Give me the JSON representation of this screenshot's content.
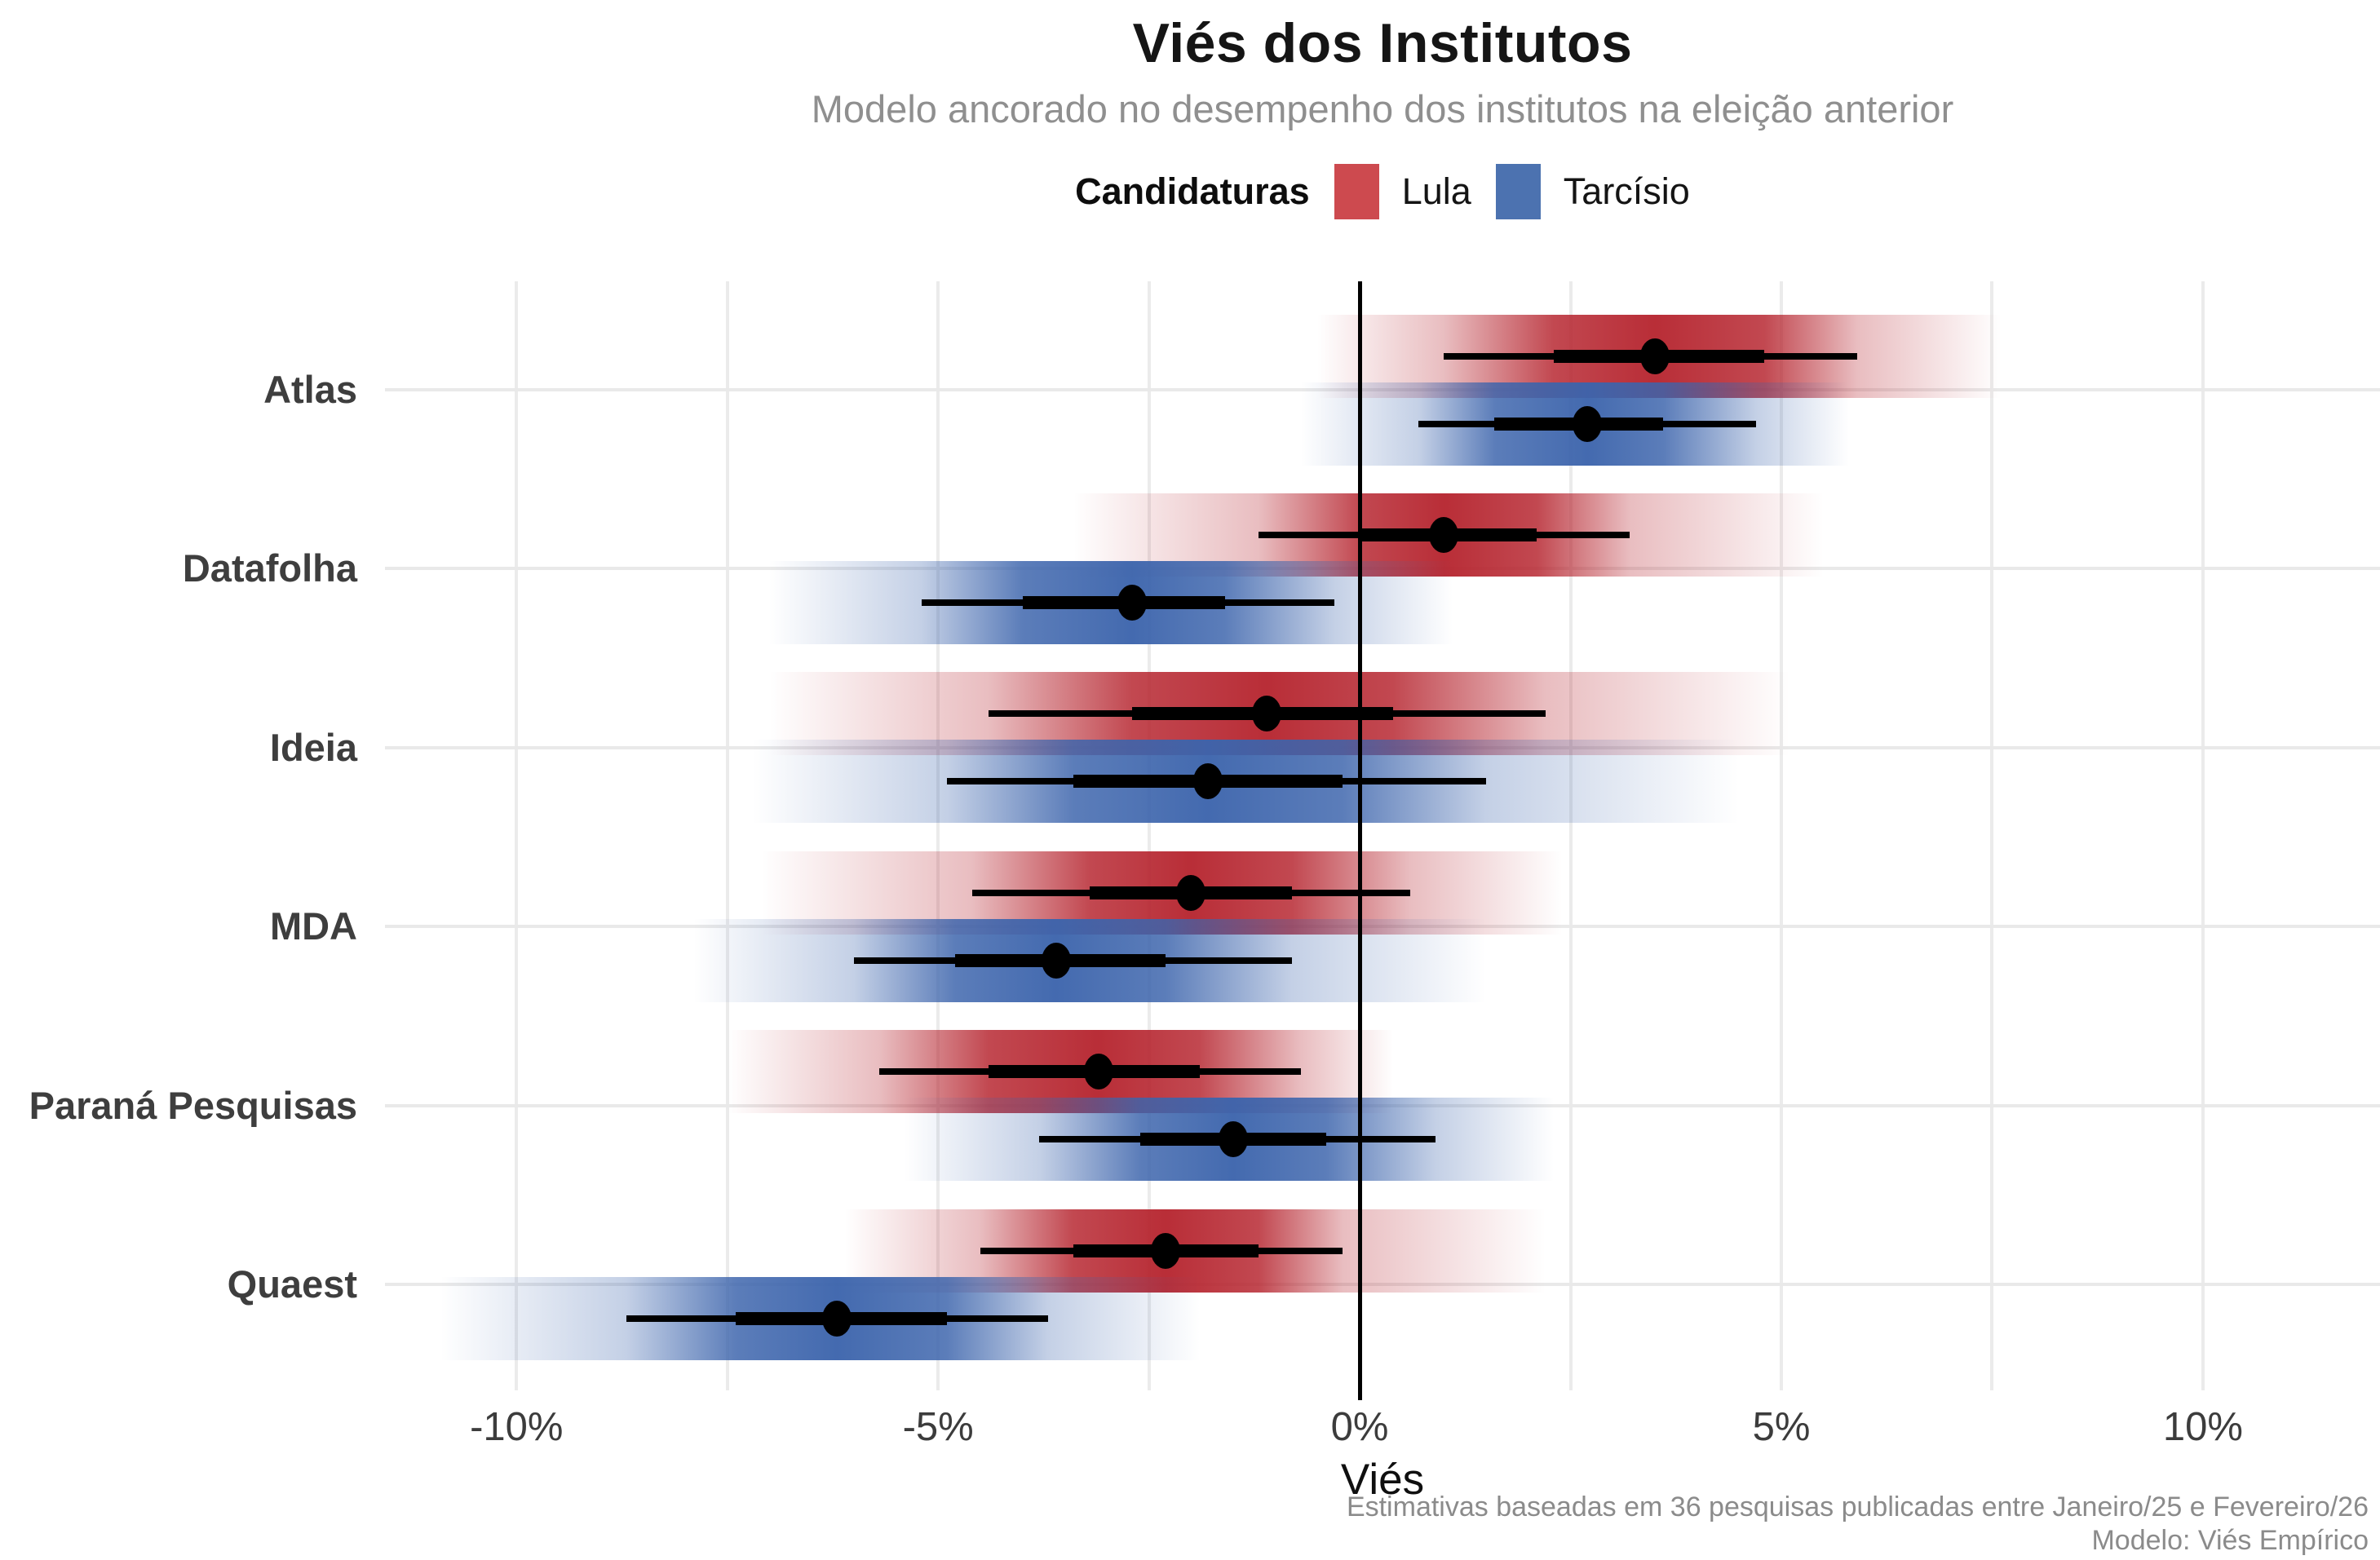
{
  "header": {
    "title": "Viés dos Institutos",
    "subtitle": "Modelo ancorado no desempenho dos institutos na eleição anterior"
  },
  "legend": {
    "label": "Candidaturas",
    "items": [
      {
        "name": "Lula",
        "color": "#CD4A4F"
      },
      {
        "name": "Tarcísio",
        "color": "#4C72B0"
      }
    ]
  },
  "axis": {
    "title": "Viés",
    "tick_labels": [
      "-10%",
      "-5%",
      "0%",
      "5%",
      "10%"
    ]
  },
  "caption": {
    "line1": "Estimativas baseadas em 36 pesquisas publicadas entre Janeiro/25 e Fevereiro/26",
    "line2": "Modelo: Viés Empírico"
  },
  "colors": {
    "lula_legend": "#CD4A4F",
    "tarcisio_legend": "#4C72B0",
    "lula_band": "#B6252F",
    "tarcisio_band": "#3C64AC",
    "gridline": "#ebebeb",
    "zero_line": "#000000",
    "errorbar": "#000000"
  },
  "chart_data": {
    "type": "pointrange",
    "title": "Viés dos Institutos",
    "subtitle": "Modelo ancorado no desempenho dos institutos na eleição anterior",
    "xlabel": "Viés",
    "unit": "percent",
    "xlim": [
      -11.56,
      12.1
    ],
    "x_major_ticks": [
      -10,
      -5,
      0,
      5,
      10
    ],
    "x_tick_labels": [
      "-10%",
      "-5%",
      "0%",
      "5%",
      "10%"
    ],
    "x_minor_ticks": [
      -7.5,
      -2.5,
      2.5,
      7.5
    ],
    "grid": true,
    "legend_position": "top",
    "candidates": [
      {
        "name": "Lula",
        "legend_color": "#CD4A4F",
        "band_color": "#B6252F"
      },
      {
        "name": "Tarcísio",
        "legend_color": "#4C72B0",
        "band_color": "#3C64AC"
      }
    ],
    "institutes": [
      {
        "name": "Atlas",
        "rows": [
          {
            "candidate": "Lula",
            "point": 3.5,
            "ci_thick": [
              2.3,
              4.8
            ],
            "ci_thin": [
              1.0,
              5.9
            ],
            "band": [
              -0.5,
              7.6
            ]
          },
          {
            "candidate": "Tarcísio",
            "point": 2.7,
            "ci_thick": [
              1.6,
              3.6
            ],
            "ci_thin": [
              0.7,
              4.7
            ],
            "band": [
              -0.7,
              5.8
            ]
          }
        ]
      },
      {
        "name": "Datafolha",
        "rows": [
          {
            "candidate": "Lula",
            "point": 1.0,
            "ci_thick": [
              0.0,
              2.1
            ],
            "ci_thin": [
              -1.2,
              3.2
            ],
            "band": [
              -3.4,
              5.5
            ]
          },
          {
            "candidate": "Tarcísio",
            "point": -2.7,
            "ci_thick": [
              -4.0,
              -1.6
            ],
            "ci_thin": [
              -5.2,
              -0.3
            ],
            "band": [
              -7.0,
              1.1
            ]
          }
        ]
      },
      {
        "name": "Ideia",
        "rows": [
          {
            "candidate": "Lula",
            "point": -1.1,
            "ci_thick": [
              -2.7,
              0.4
            ],
            "ci_thin": [
              -4.4,
              2.2
            ],
            "band": [
              -7.0,
              5.1
            ]
          },
          {
            "candidate": "Tarcísio",
            "point": -1.8,
            "ci_thick": [
              -3.4,
              -0.2
            ],
            "ci_thin": [
              -4.9,
              1.5
            ],
            "band": [
              -7.2,
              4.5
            ]
          }
        ]
      },
      {
        "name": "MDA",
        "rows": [
          {
            "candidate": "Lula",
            "point": -2.0,
            "ci_thick": [
              -3.2,
              -0.8
            ],
            "ci_thin": [
              -4.6,
              0.6
            ],
            "band": [
              -7.1,
              2.4
            ]
          },
          {
            "candidate": "Tarcísio",
            "point": -3.6,
            "ci_thick": [
              -4.8,
              -2.3
            ],
            "ci_thin": [
              -6.0,
              -0.8
            ],
            "band": [
              -7.9,
              1.5
            ]
          }
        ]
      },
      {
        "name": "Paraná Pesquisas",
        "rows": [
          {
            "candidate": "Lula",
            "point": -3.1,
            "ci_thick": [
              -4.4,
              -1.9
            ],
            "ci_thin": [
              -5.7,
              -0.7
            ],
            "band": [
              -7.5,
              0.4
            ]
          },
          {
            "candidate": "Tarcísio",
            "point": -1.5,
            "ci_thick": [
              -2.6,
              -0.4
            ],
            "ci_thin": [
              -3.8,
              0.9
            ],
            "band": [
              -5.4,
              2.3
            ]
          }
        ]
      },
      {
        "name": "Quaest",
        "rows": [
          {
            "candidate": "Lula",
            "point": -2.3,
            "ci_thick": [
              -3.4,
              -1.2
            ],
            "ci_thin": [
              -4.5,
              -0.2
            ],
            "band": [
              -6.1,
              2.2
            ]
          },
          {
            "candidate": "Tarcísio",
            "point": -6.2,
            "ci_thick": [
              -7.4,
              -4.9
            ],
            "ci_thin": [
              -8.7,
              -3.7
            ],
            "band": [
              -10.9,
              -1.9
            ]
          }
        ]
      }
    ]
  }
}
